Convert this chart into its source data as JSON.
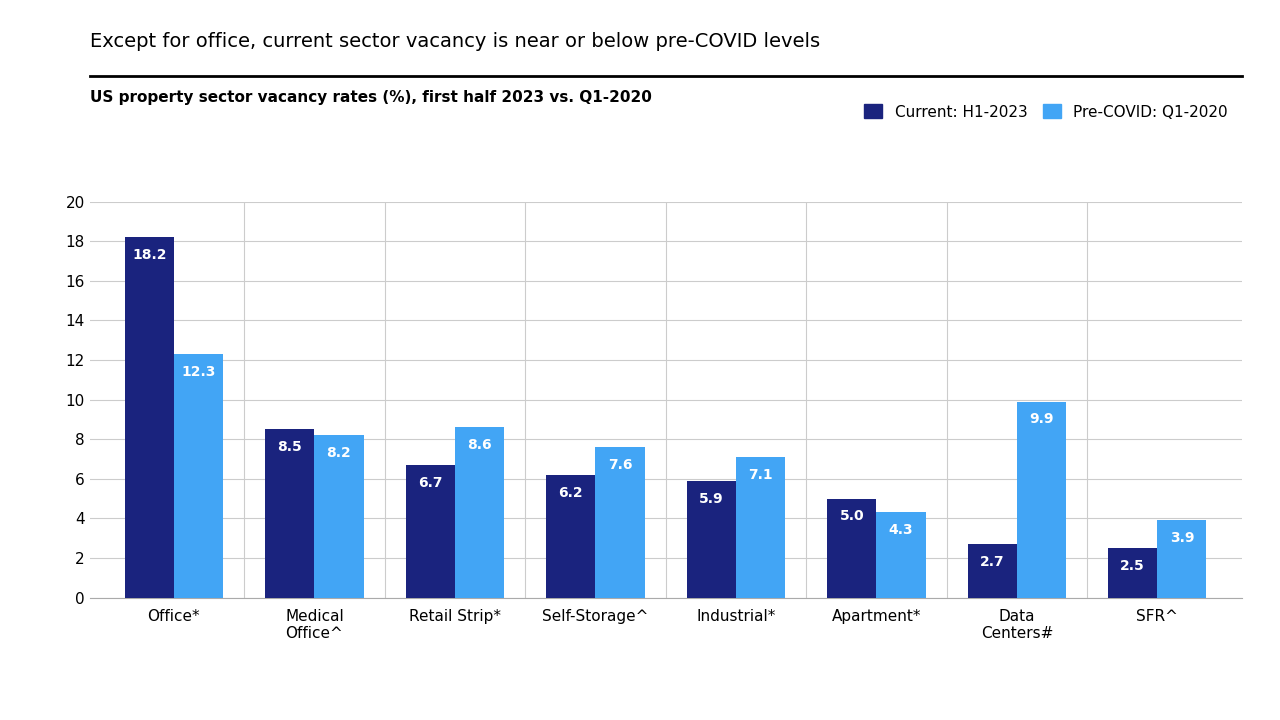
{
  "title": "Except for office, current sector vacancy is near or below pre-COVID levels",
  "subtitle": "US property sector vacancy rates (%), first half 2023 vs. Q1-2020",
  "categories": [
    "Office*",
    "Medical\nOffice^",
    "Retail Strip*",
    "Self-Storage^",
    "Industrial*",
    "Apartment*",
    "Data\nCenters#",
    "SFR^"
  ],
  "current_values": [
    18.2,
    8.5,
    6.7,
    6.2,
    5.9,
    5.0,
    2.7,
    2.5
  ],
  "precovid_values": [
    12.3,
    8.2,
    8.6,
    7.6,
    7.1,
    4.3,
    9.9,
    3.9
  ],
  "current_color": "#1a237e",
  "precovid_color": "#42a5f5",
  "ylim": [
    0,
    20
  ],
  "yticks": [
    0,
    2,
    4,
    6,
    8,
    10,
    12,
    14,
    16,
    18,
    20
  ],
  "legend_current": "Current: H1-2023",
  "legend_precovid": "Pre-COVID: Q1-2020",
  "bar_width": 0.35,
  "background_color": "#ffffff",
  "grid_color": "#cccccc",
  "title_fontsize": 14,
  "subtitle_fontsize": 11,
  "tick_fontsize": 11,
  "value_fontsize": 10
}
